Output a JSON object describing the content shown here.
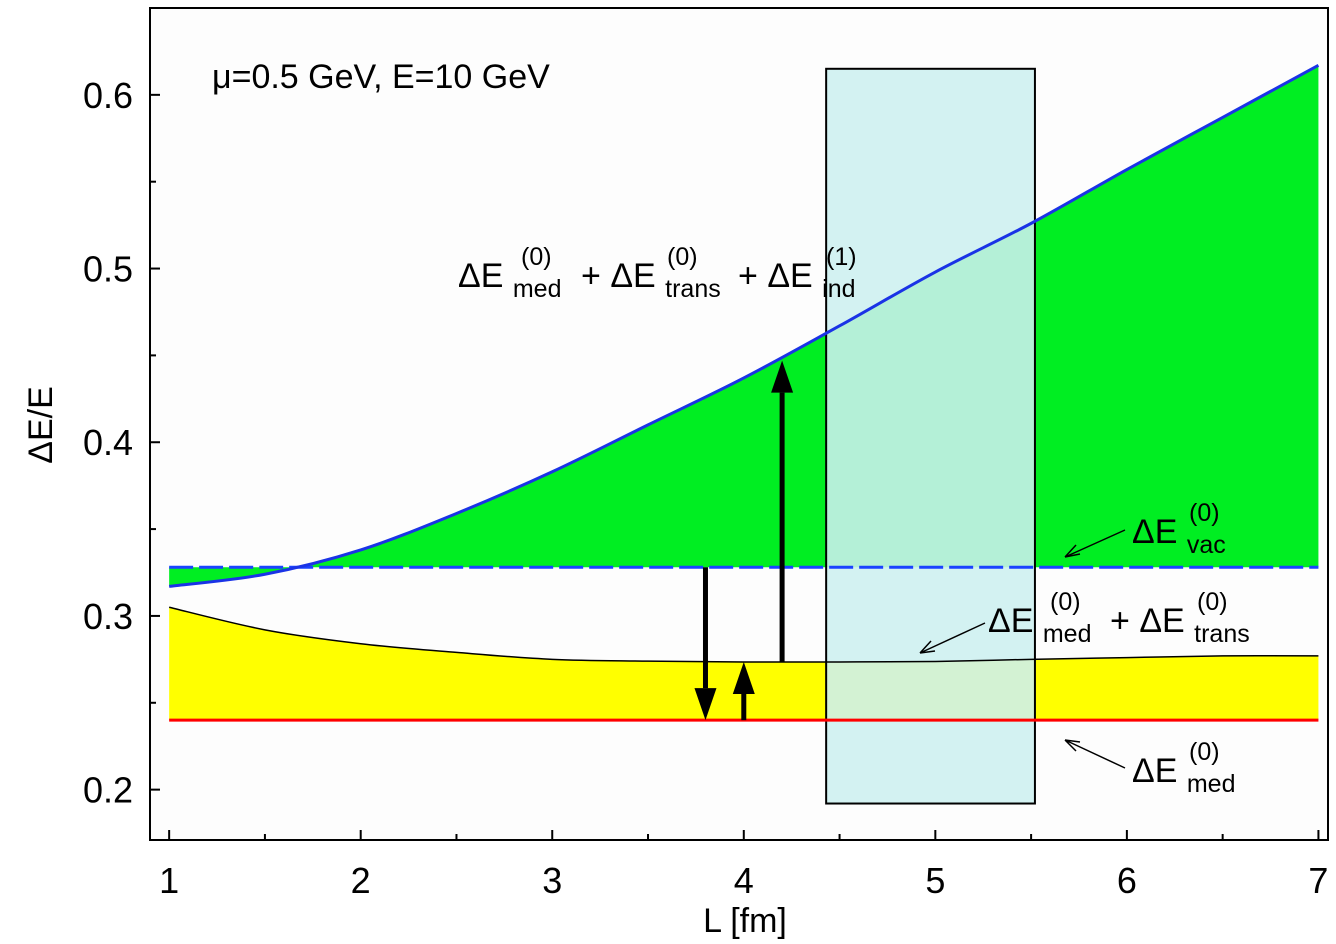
{
  "chart_data": {
    "type": "area",
    "title": "",
    "xlabel": "L [fm]",
    "ylabel": "ΔE/E",
    "xlim": [
      0.9,
      7.05
    ],
    "ylim": [
      0.171,
      0.65
    ],
    "x_ticks": [
      "1",
      "2",
      "3",
      "4",
      "5",
      "6",
      "7"
    ],
    "y_ticks": [
      "0.2",
      "0.3",
      "0.4",
      "0.5",
      "0.6"
    ],
    "grid": false,
    "legend": "none",
    "parameters_label": "μ=0.5 GeV, E=10 GeV",
    "x": [
      1,
      1.5,
      2,
      2.5,
      3,
      3.5,
      4,
      4.5,
      5,
      5.5,
      6,
      6.5,
      7
    ],
    "series": [
      {
        "name": "ΔE(0)med",
        "color": "#ff0000",
        "values": [
          0.24,
          0.24,
          0.24,
          0.24,
          0.24,
          0.24,
          0.24,
          0.24,
          0.24,
          0.24,
          0.24,
          0.24,
          0.24
        ]
      },
      {
        "name": "ΔE(0)med+ΔE(0)trans",
        "color": "#000000",
        "fill": "#ffff00",
        "values": [
          0.305,
          0.292,
          0.284,
          0.279,
          0.275,
          0.274,
          0.2735,
          0.2735,
          0.2738,
          0.275,
          0.276,
          0.277,
          0.277
        ]
      },
      {
        "name": "ΔE(0)vac",
        "color": "#1a43ff",
        "style": "dashed",
        "values": [
          0.328,
          0.328,
          0.328,
          0.328,
          0.328,
          0.328,
          0.328,
          0.328,
          0.328,
          0.328,
          0.328,
          0.328,
          0.328
        ]
      },
      {
        "name": "ΔE(0)med+ΔE(0)trans+ΔE(1)ind",
        "color": "#1a33e6",
        "fill": "#00ee22",
        "values": [
          0.317,
          0.324,
          0.338,
          0.359,
          0.383,
          0.41,
          0.437,
          0.467,
          0.498,
          0.526,
          0.557,
          0.587,
          0.617
        ]
      }
    ],
    "band": {
      "x_range": [
        4.43,
        5.52
      ],
      "y_range": [
        0.192,
        0.615
      ],
      "color": "#cdf0f0"
    },
    "annotations": {
      "top_label": {
        "base": "ΔE",
        "parts": [
          {
            "sub": "med",
            "sup": "(0)"
          },
          {
            "sub": "trans",
            "sup": "(0)"
          },
          {
            "sub": "ind",
            "sup": "(1)"
          }
        ]
      },
      "vac_label": {
        "base": "ΔE",
        "sub": "vac",
        "sup": "(0)"
      },
      "medtrans_label": {
        "base": "ΔE",
        "parts": [
          {
            "sub": "med",
            "sup": "(0)"
          },
          {
            "sub": "trans",
            "sup": "(0)"
          }
        ]
      },
      "med_label": {
        "base": "ΔE",
        "sub": "med",
        "sup": "(0)"
      },
      "plus": "+"
    },
    "arrows": [
      {
        "x": 3.8,
        "from": 0.328,
        "to": 0.24
      },
      {
        "x": 4.0,
        "from": 0.24,
        "to": 0.2735
      },
      {
        "x": 4.2,
        "from": 0.2735,
        "to": 0.447
      }
    ]
  }
}
